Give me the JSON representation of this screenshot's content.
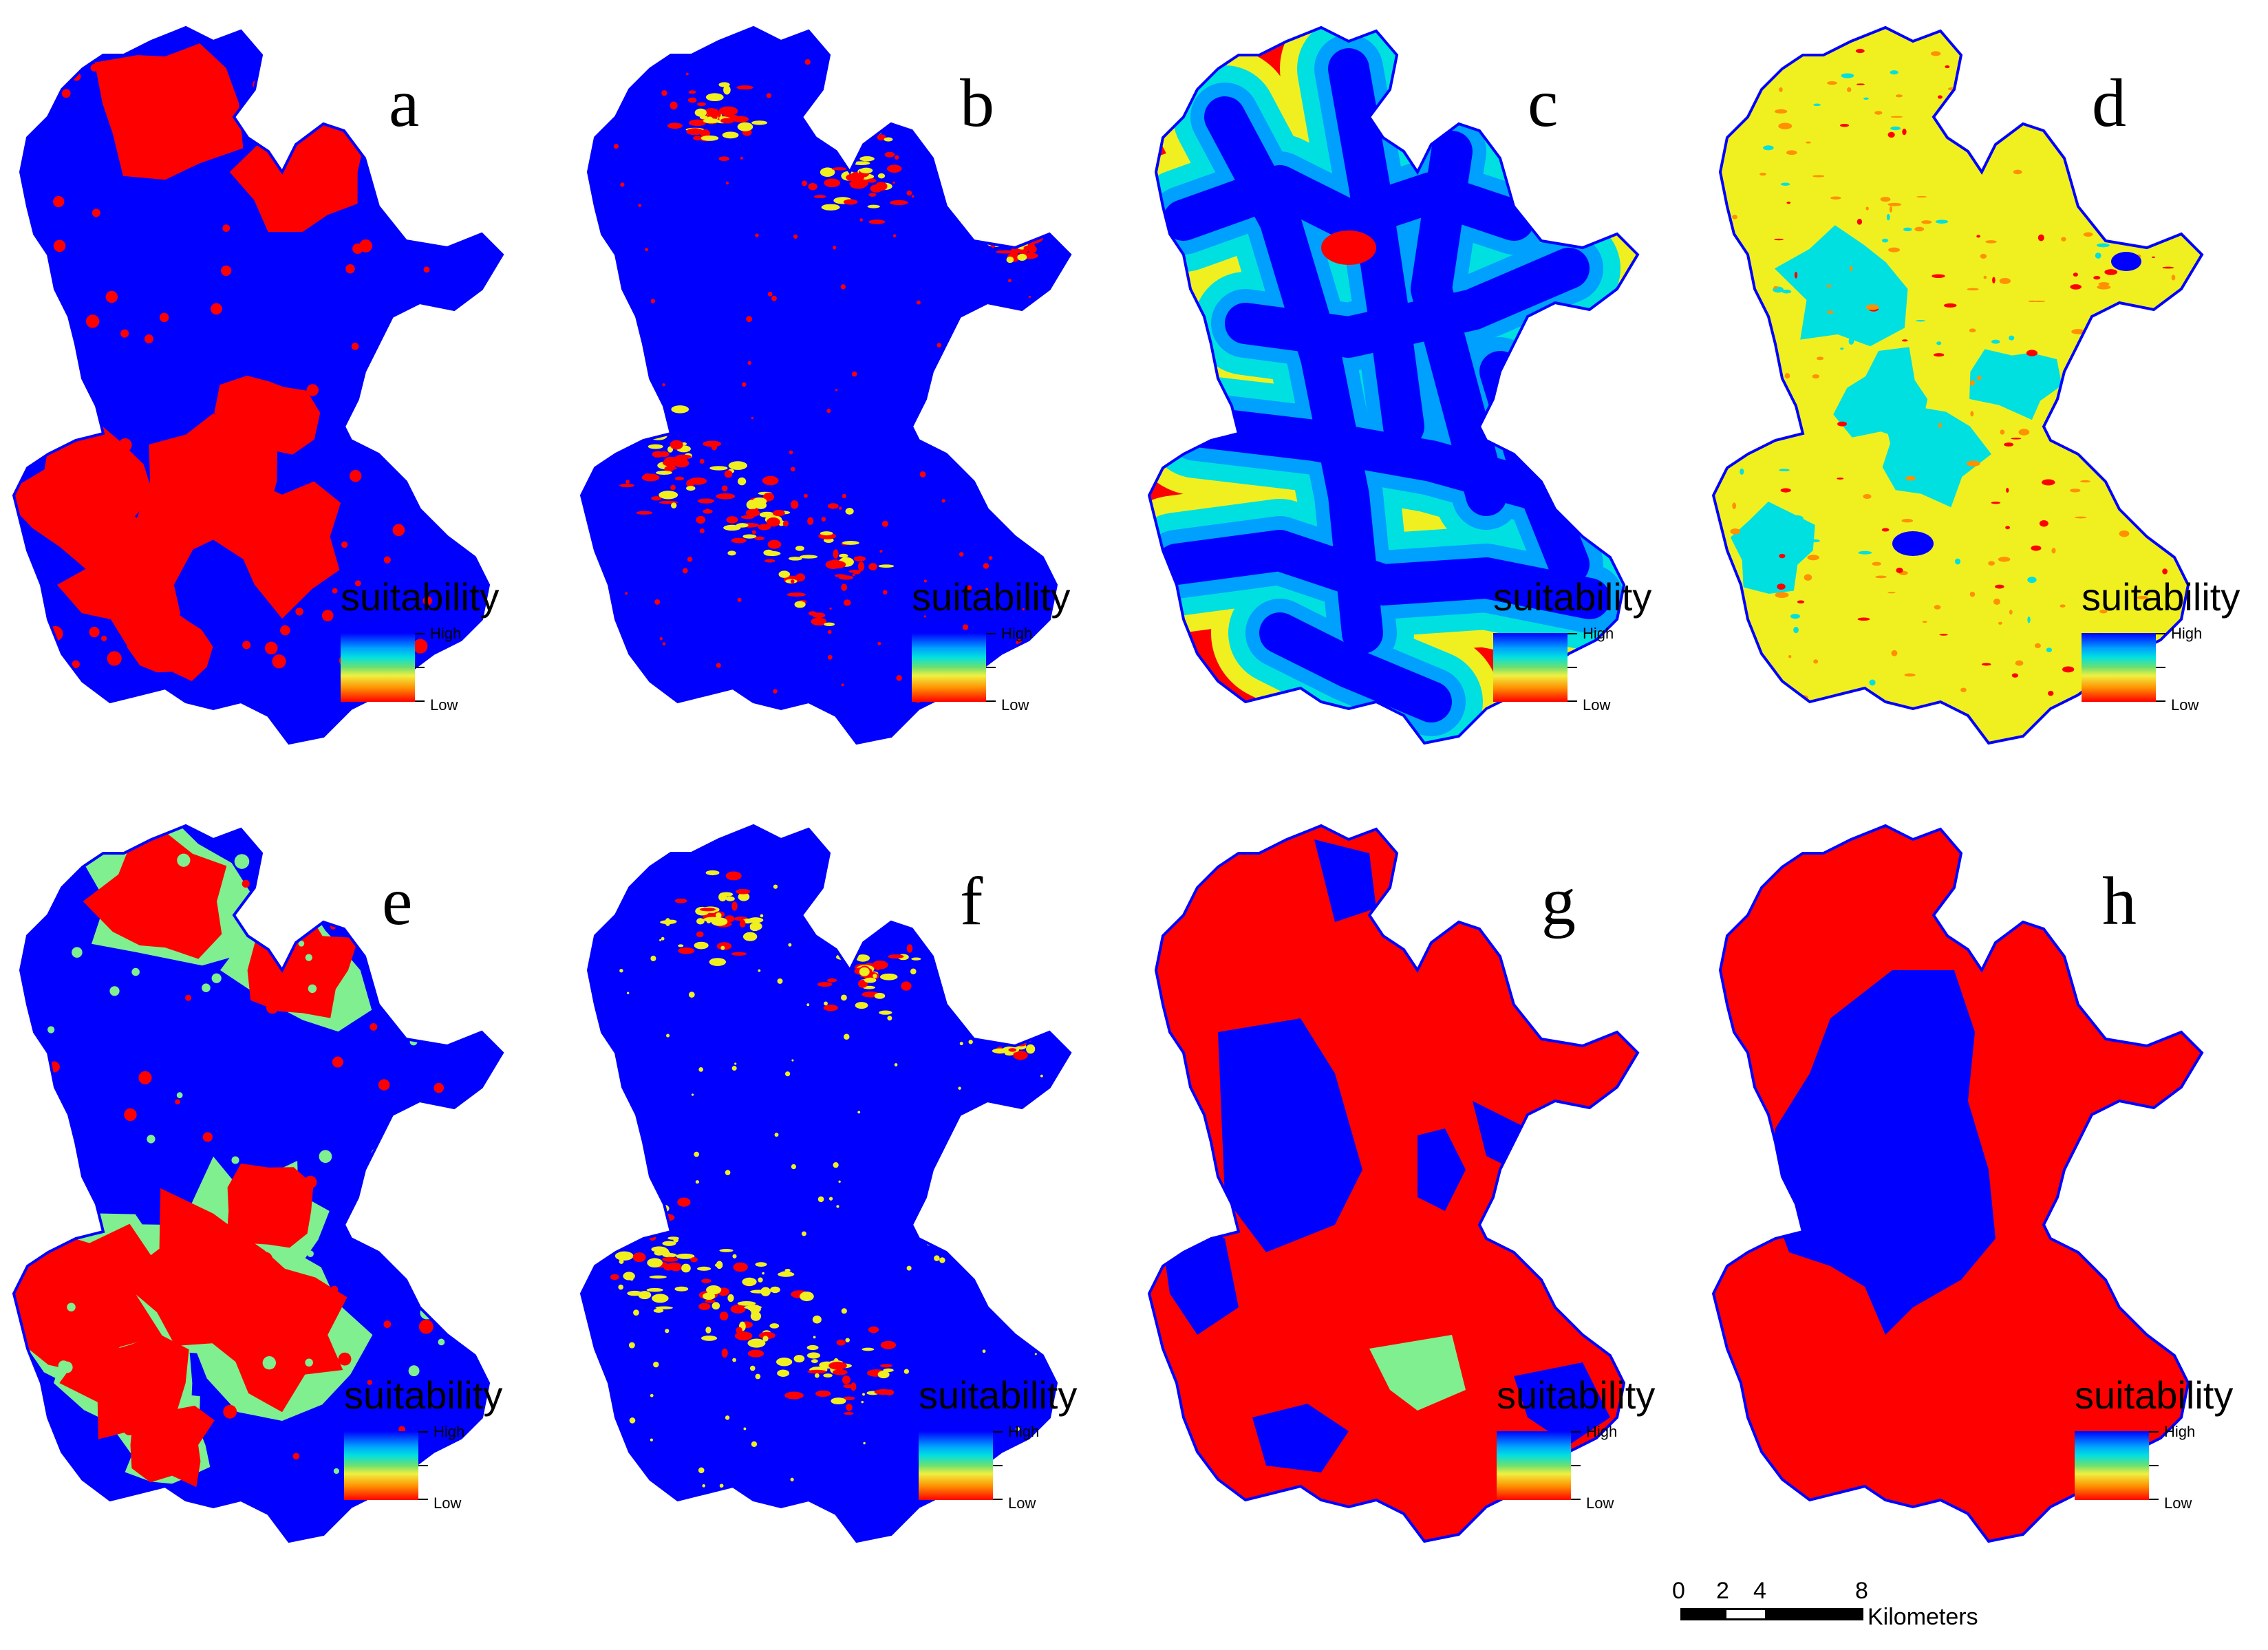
{
  "panels": [
    {
      "label": "a",
      "style": "patchy-red",
      "legend_title": "suitability",
      "legend_high": "High",
      "legend_low": "Low"
    },
    {
      "label": "b",
      "style": "scattered-red",
      "legend_title": "suitability",
      "legend_high": "High",
      "legend_low": "Low"
    },
    {
      "label": "c",
      "style": "road-buffer",
      "legend_title": "suitability",
      "legend_high": "High",
      "legend_low": "Low"
    },
    {
      "label": "d",
      "style": "yellow-noise",
      "legend_title": "suitability",
      "legend_high": "High",
      "legend_low": "Low"
    },
    {
      "label": "e",
      "style": "patchy-red-green",
      "legend_title": "suitability",
      "legend_high": "High",
      "legend_low": "Low"
    },
    {
      "label": "f",
      "style": "scattered-yellow",
      "legend_title": "suitability",
      "legend_high": "High",
      "legend_low": "Low"
    },
    {
      "label": "g",
      "style": "zones-red-blue",
      "legend_title": "suitability",
      "legend_high": "High",
      "legend_low": "Low"
    },
    {
      "label": "h",
      "style": "center-blue",
      "legend_title": "suitability",
      "legend_high": "High",
      "legend_low": "Low"
    }
  ],
  "colors": {
    "high": "#0000ff",
    "mid_blue": "#00a0ff",
    "cyan": "#00e0e0",
    "green": "#7fef8f",
    "yellow": "#f0f020",
    "orange": "#ff9000",
    "low": "#ff0000"
  },
  "scale_bar": {
    "ticks": [
      "0",
      "2",
      "4",
      "8"
    ],
    "unit": "Kilometers"
  }
}
